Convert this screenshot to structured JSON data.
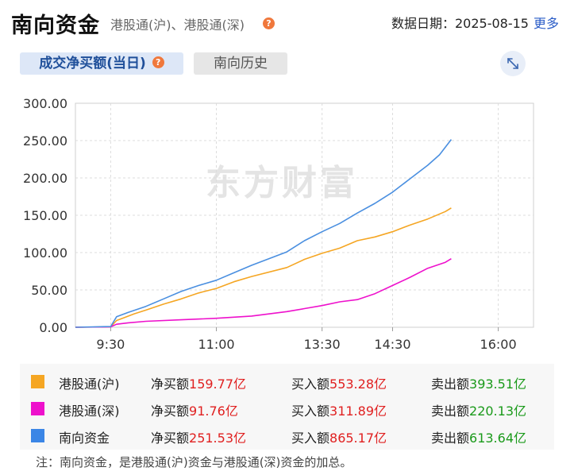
{
  "header": {
    "title": "南向资金",
    "subtitle": "港股通(沪)、港股通(深)",
    "help_icon": "question-icon",
    "date_label": "数据日期：2025-08-15",
    "more_label": "更多"
  },
  "tabs": {
    "active_label": "成交净买额(当日)",
    "history_label": "南向历史"
  },
  "expand_icon": "expand-icon",
  "watermark": "东方财富",
  "chart_data": {
    "type": "line",
    "y_ticks": [
      "300.00",
      "250.00",
      "200.00",
      "150.00",
      "100.00",
      "50.00",
      "0.00"
    ],
    "x_ticks": [
      "9:30",
      "11:00",
      "13:30",
      "14:30",
      "16:00"
    ],
    "ylim": [
      0,
      300
    ],
    "grid": true,
    "series": [
      {
        "name": "港股通(沪)",
        "color": "#f5a623",
        "points": [
          [
            "9:00",
            0
          ],
          [
            "9:30",
            0.5
          ],
          [
            "9:35",
            9
          ],
          [
            "9:40",
            12
          ],
          [
            "9:50",
            18
          ],
          [
            "10:00",
            23
          ],
          [
            "10:15",
            31
          ],
          [
            "10:30",
            38
          ],
          [
            "10:45",
            46
          ],
          [
            "11:00",
            52
          ],
          [
            "11:15",
            61
          ],
          [
            "11:30",
            68
          ],
          [
            "13:00",
            80
          ],
          [
            "13:15",
            91
          ],
          [
            "13:30",
            99
          ],
          [
            "13:45",
            106
          ],
          [
            "14:00",
            116
          ],
          [
            "14:15",
            121
          ],
          [
            "14:30",
            128
          ],
          [
            "14:45",
            137
          ],
          [
            "15:00",
            145
          ],
          [
            "15:15",
            155
          ],
          [
            "15:20",
            159.77
          ]
        ]
      },
      {
        "name": "港股通(深)",
        "color": "#ee11cc",
        "points": [
          [
            "9:00",
            0
          ],
          [
            "9:30",
            0.5
          ],
          [
            "9:35",
            4
          ],
          [
            "9:45",
            6
          ],
          [
            "10:00",
            8
          ],
          [
            "10:30",
            10
          ],
          [
            "11:00",
            12
          ],
          [
            "11:30",
            15
          ],
          [
            "13:00",
            21
          ],
          [
            "13:15",
            25
          ],
          [
            "13:30",
            29
          ],
          [
            "13:45",
            34
          ],
          [
            "14:00",
            37
          ],
          [
            "14:15",
            45
          ],
          [
            "14:30",
            56
          ],
          [
            "14:45",
            67
          ],
          [
            "15:00",
            79
          ],
          [
            "15:15",
            87
          ],
          [
            "15:20",
            91.76
          ]
        ]
      },
      {
        "name": "南向资金",
        "color": "#4a8fe0",
        "points": [
          [
            "9:00",
            0
          ],
          [
            "9:30",
            1
          ],
          [
            "9:35",
            14
          ],
          [
            "9:45",
            20
          ],
          [
            "10:00",
            28
          ],
          [
            "10:15",
            38
          ],
          [
            "10:30",
            48
          ],
          [
            "10:45",
            56
          ],
          [
            "11:00",
            63
          ],
          [
            "11:15",
            73
          ],
          [
            "11:30",
            83
          ],
          [
            "13:00",
            101
          ],
          [
            "13:15",
            116
          ],
          [
            "13:30",
            128
          ],
          [
            "13:45",
            139
          ],
          [
            "14:00",
            153
          ],
          [
            "14:15",
            166
          ],
          [
            "14:30",
            181
          ],
          [
            "14:45",
            199
          ],
          [
            "15:00",
            217
          ],
          [
            "15:10",
            231
          ],
          [
            "15:20",
            251.53
          ]
        ]
      }
    ]
  },
  "legend": [
    {
      "name": "港股通(沪)",
      "color": "#f5a623",
      "net_label": "净买额",
      "net_value": "159.77亿",
      "buy_label": "买入额",
      "buy_value": "553.28亿",
      "sell_label": "卖出额",
      "sell_value": "393.51亿"
    },
    {
      "name": "港股通(深)",
      "color": "#ee11cc",
      "net_label": "净买额",
      "net_value": "91.76亿",
      "buy_label": "买入额",
      "buy_value": "311.89亿",
      "sell_label": "卖出额",
      "sell_value": "220.13亿"
    },
    {
      "name": "南向资金",
      "color": "#3b86e6",
      "net_label": "净买额",
      "net_value": "251.53亿",
      "buy_label": "买入额",
      "buy_value": "865.17亿",
      "sell_label": "卖出额",
      "sell_value": "613.64亿"
    }
  ],
  "note": "注：南向资金，是港股通(沪)资金与港股通(深)资金的加总。"
}
